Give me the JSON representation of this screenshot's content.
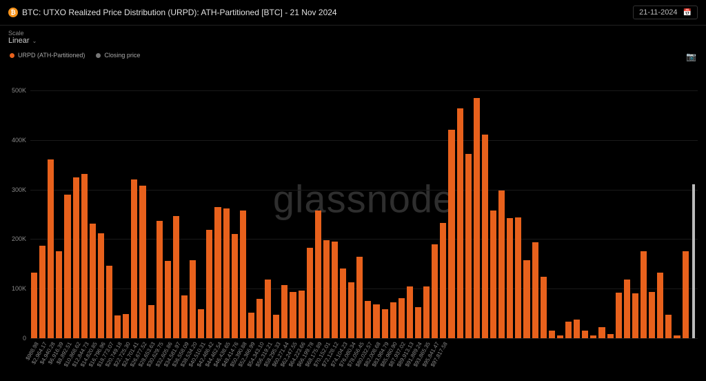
{
  "header": {
    "title": "BTC: UTXO Realized Price Distribution (URPD): ATH-Partitioned [BTC] - 21 Nov 2024",
    "btc_symbol": "₿",
    "date_value": "21-11-2024"
  },
  "scale": {
    "label": "Scale",
    "value": "Linear"
  },
  "legend": {
    "items": [
      {
        "label": "URPD (ATH-Partitioned)",
        "color": "#e8611c"
      },
      {
        "label": "Closing price",
        "color": "#777777"
      }
    ]
  },
  "watermark": "glassnode",
  "chart": {
    "type": "bar",
    "background": "#000000",
    "grid_color": "#1a1a1a",
    "y_axis": {
      "min": 0,
      "max": 550000,
      "ticks": [
        {
          "v": 0,
          "label": "0"
        },
        {
          "v": 100000,
          "label": "100K"
        },
        {
          "v": 200000,
          "label": "200K"
        },
        {
          "v": 300000,
          "label": "300K"
        },
        {
          "v": 400000,
          "label": "400K"
        },
        {
          "v": 500000,
          "label": "500K"
        }
      ],
      "label_fontsize": 9,
      "label_color": "#888888"
    },
    "closing_price_bar": {
      "color": "#bbbbbb",
      "width_frac": 0.32
    },
    "bars": [
      {
        "x": "$988.98",
        "v": 132000,
        "color": "#e8611c"
      },
      {
        "x": "$2,964.17",
        "v": 187000,
        "color": "#e8611c"
      },
      {
        "x": "$4,940.28",
        "v": 360000,
        "color": "#e8611c"
      },
      {
        "x": "$6,916.39",
        "v": 175000,
        "color": "#e8611c"
      },
      {
        "x": "$8,892.51",
        "v": 290000,
        "color": "#e8611c"
      },
      {
        "x": "$10,868.62",
        "v": 325000,
        "color": "#e8611c"
      },
      {
        "x": "$12,844.73",
        "v": 332000,
        "color": "#e8611c"
      },
      {
        "x": "$14,820.85",
        "v": 231000,
        "color": "#e8611c"
      },
      {
        "x": "$16,796.96",
        "v": 211000,
        "color": "#e8611c"
      },
      {
        "x": "$18,773.07",
        "v": 146000,
        "color": "#e8611c"
      },
      {
        "x": "$20,749.18",
        "v": 46000,
        "color": "#e8611c"
      },
      {
        "x": "$22,725.30",
        "v": 49000,
        "color": "#e8611c"
      },
      {
        "x": "$24,701.41",
        "v": 320000,
        "color": "#e8611c"
      },
      {
        "x": "$26,677.52",
        "v": 308000,
        "color": "#e8611c"
      },
      {
        "x": "$28,653.63",
        "v": 67000,
        "color": "#e8611c"
      },
      {
        "x": "$30,629.75",
        "v": 237000,
        "color": "#e8611c"
      },
      {
        "x": "$32,605.86",
        "v": 156000,
        "color": "#e8611c"
      },
      {
        "x": "$34,581.97",
        "v": 246000,
        "color": "#e8611c"
      },
      {
        "x": "$36,558.09",
        "v": 87000,
        "color": "#e8611c"
      },
      {
        "x": "$38,534.20",
        "v": 158000,
        "color": "#e8611c"
      },
      {
        "x": "$40,510.31",
        "v": 58000,
        "color": "#e8611c"
      },
      {
        "x": "$42,486.42",
        "v": 218000,
        "color": "#e8611c"
      },
      {
        "x": "$44,462.54",
        "v": 264000,
        "color": "#e8611c"
      },
      {
        "x": "$46,438.65",
        "v": 262000,
        "color": "#e8611c"
      },
      {
        "x": "$48,414.76",
        "v": 210000,
        "color": "#e8611c"
      },
      {
        "x": "$50,390.88",
        "v": 257000,
        "color": "#e8611c"
      },
      {
        "x": "$52,366.99",
        "v": 52000,
        "color": "#e8611c"
      },
      {
        "x": "$54,343.10",
        "v": 79000,
        "color": "#e8611c"
      },
      {
        "x": "$56,319.21",
        "v": 119000,
        "color": "#e8611c"
      },
      {
        "x": "$58,295.33",
        "v": 48000,
        "color": "#e8611c"
      },
      {
        "x": "$60,271.44",
        "v": 107000,
        "color": "#e8611c"
      },
      {
        "x": "$62,247.55",
        "v": 94000,
        "color": "#e8611c"
      },
      {
        "x": "$64,223.66",
        "v": 96000,
        "color": "#e8611c"
      },
      {
        "x": "$66,199.78",
        "v": 183000,
        "color": "#e8611c"
      },
      {
        "x": "$68,175.89",
        "v": 258000,
        "color": "#e8611c"
      },
      {
        "x": "$70,152.01",
        "v": 198000,
        "color": "#e8611c"
      },
      {
        "x": "$72,128.12",
        "v": 195000,
        "color": "#e8611c"
      },
      {
        "x": "$74,104.23",
        "v": 140000,
        "color": "#e8611c"
      },
      {
        "x": "$76,080.34",
        "v": 113000,
        "color": "#e8611c"
      },
      {
        "x": "$78,056.45",
        "v": 164000,
        "color": "#e8611c"
      },
      {
        "x": "$80,032.57",
        "v": 75000,
        "color": "#e8611c"
      },
      {
        "x": "$82,008.68",
        "v": 68000,
        "color": "#e8611c"
      },
      {
        "x": "$83,984.79",
        "v": 58000,
        "color": "#e8611c"
      },
      {
        "x": "$85,960.90",
        "v": 73000,
        "color": "#e8611c"
      },
      {
        "x": "$87,937.02",
        "v": 81000,
        "color": "#e8611c"
      },
      {
        "x": "$89,913.13",
        "v": 104000,
        "color": "#e8611c"
      },
      {
        "x": "$91,889.24",
        "v": 63000,
        "color": "#e8611c"
      },
      {
        "x": "$93,865.35",
        "v": 105000,
        "color": "#e8611c"
      },
      {
        "x": "$95,841.47",
        "v": 190000,
        "color": "#e8611c"
      },
      {
        "x": "$97,817.58",
        "v": 232000,
        "color": "#e8611c"
      },
      {
        "x": "",
        "v": 421000,
        "color": "#e8611c"
      },
      {
        "x": "",
        "v": 463000,
        "color": "#e8611c"
      },
      {
        "x": "",
        "v": 372000,
        "color": "#e8611c"
      },
      {
        "x": "",
        "v": 484000,
        "color": "#e8611c"
      },
      {
        "x": "",
        "v": 411000,
        "color": "#e8611c"
      },
      {
        "x": "",
        "v": 258000,
        "color": "#e8611c"
      },
      {
        "x": "",
        "v": 298000,
        "color": "#e8611c"
      },
      {
        "x": "",
        "v": 242000,
        "color": "#e8611c"
      },
      {
        "x": "",
        "v": 244000,
        "color": "#e8611c"
      },
      {
        "x": "",
        "v": 158000,
        "color": "#e8611c"
      },
      {
        "x": "",
        "v": 194000,
        "color": "#e8611c"
      },
      {
        "x": "",
        "v": 124000,
        "color": "#e8611c"
      },
      {
        "x": "",
        "v": 16000,
        "color": "#e8611c"
      },
      {
        "x": "",
        "v": 6000,
        "color": "#e8611c"
      },
      {
        "x": "",
        "v": 34000,
        "color": "#e8611c"
      },
      {
        "x": "",
        "v": 38000,
        "color": "#e8611c"
      },
      {
        "x": "",
        "v": 16000,
        "color": "#e8611c"
      },
      {
        "x": "",
        "v": 5000,
        "color": "#e8611c"
      },
      {
        "x": "",
        "v": 22000,
        "color": "#e8611c"
      },
      {
        "x": "",
        "v": 8000,
        "color": "#e8611c"
      },
      {
        "x": "",
        "v": 92000,
        "color": "#e8611c"
      },
      {
        "x": "",
        "v": 118000,
        "color": "#e8611c"
      },
      {
        "x": "",
        "v": 90000,
        "color": "#e8611c"
      },
      {
        "x": "",
        "v": 176000,
        "color": "#e8611c"
      },
      {
        "x": "",
        "v": 94000,
        "color": "#e8611c"
      },
      {
        "x": "",
        "v": 132000,
        "color": "#e8611c"
      },
      {
        "x": "",
        "v": 48000,
        "color": "#e8611c"
      },
      {
        "x": "",
        "v": 5000,
        "color": "#e8611c"
      },
      {
        "x": "",
        "v": 176000,
        "color": "#e8611c"
      },
      {
        "x": "",
        "v": 310000,
        "color": "#bbbbbb",
        "thin": true
      }
    ]
  }
}
